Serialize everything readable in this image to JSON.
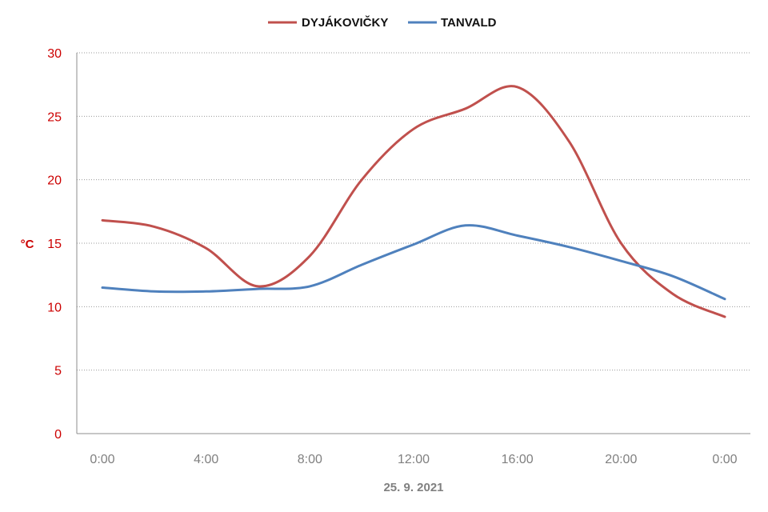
{
  "chart_data": {
    "type": "line",
    "title": "",
    "xlabel": "25. 9. 2021",
    "ylabel": "°C",
    "ylim": [
      0,
      30
    ],
    "yticks": [
      "0",
      "5",
      "10",
      "15",
      "20",
      "25",
      "30"
    ],
    "xlim": [
      0,
      24
    ],
    "xticks": [
      {
        "value": 0,
        "label": "0:00"
      },
      {
        "value": 4,
        "label": "4:00"
      },
      {
        "value": 8,
        "label": "8:00"
      },
      {
        "value": 12,
        "label": "12:00"
      },
      {
        "value": 16,
        "label": "16:00"
      },
      {
        "value": 20,
        "label": "20:00"
      },
      {
        "value": 24,
        "label": "0:00"
      }
    ],
    "grid": true,
    "legend_position": "top-center",
    "x": [
      0,
      2,
      4,
      6,
      8,
      10,
      12,
      14,
      16,
      18,
      20,
      22,
      24
    ],
    "series": [
      {
        "name": "DYJÁKOVIČKY",
        "color": "#c0504d",
        "values": [
          16.8,
          16.3,
          14.6,
          11.6,
          14.0,
          20.0,
          24.0,
          25.6,
          27.3,
          23.0,
          15.0,
          11.0,
          9.2
        ]
      },
      {
        "name": "TANVALD",
        "color": "#4f81bd",
        "values": [
          11.5,
          11.2,
          11.2,
          11.4,
          11.6,
          13.3,
          14.9,
          16.4,
          15.6,
          14.7,
          13.6,
          12.4,
          10.6
        ]
      }
    ]
  }
}
